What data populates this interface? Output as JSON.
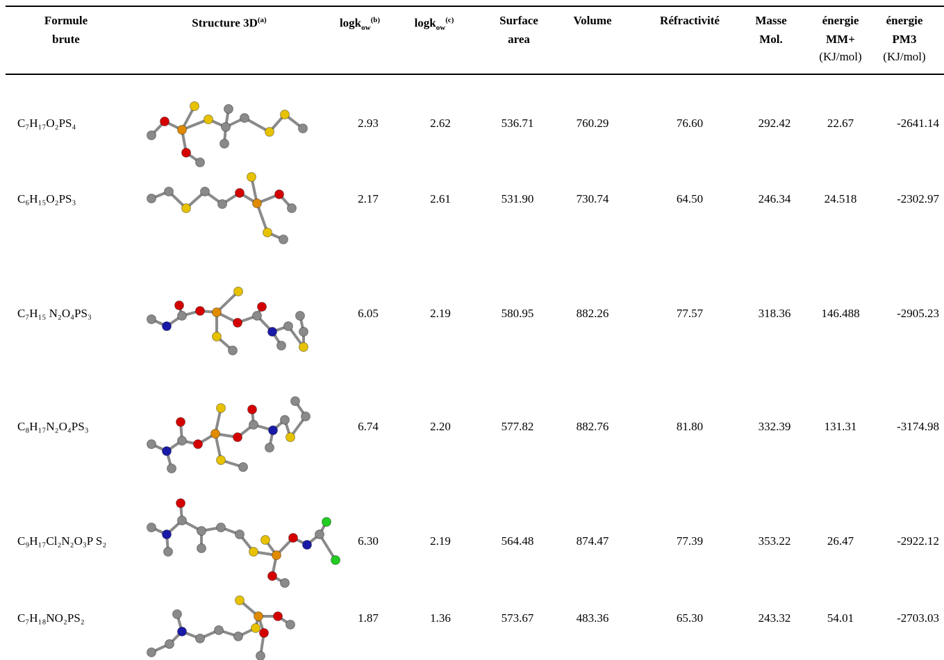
{
  "table": {
    "headers": [
      {
        "lines": [
          "Formule",
          "brute"
        ]
      },
      {
        "main": "Structure 3D",
        "sup": "(a)"
      },
      {
        "main": "logk",
        "sub": "ow",
        "sup": "(b)"
      },
      {
        "main": "logk",
        "sub": "ow",
        "sup": "(c)"
      },
      {
        "lines": [
          "Surface",
          "area"
        ]
      },
      {
        "lines": [
          "Volume"
        ]
      },
      {
        "lines": [
          "Réfractivité"
        ]
      },
      {
        "lines": [
          "Masse",
          "Mol."
        ]
      },
      {
        "lines": [
          "énergie",
          "MM+"
        ],
        "unit": "(KJ/mol)"
      },
      {
        "lines": [
          "énergie",
          "PM3"
        ],
        "unit": "(KJ/mol)"
      }
    ],
    "rows": [
      [
        "C₇H₁₇O₂PS₄",
        "2.93",
        "2.62",
        "536.71",
        "760.29",
        "76.60",
        "292.42",
        "22.67",
        "-2641.14"
      ],
      [
        "C₆H₁₅O₂PS₃",
        "2.17",
        "2.61",
        "531.90",
        "730.74",
        "64.50",
        "246.34",
        "24.518",
        "-2302.97"
      ],
      [
        "C₇H₁₅ N₂O₄PS₃",
        "6.05",
        "2.19",
        "580.95",
        "882.26",
        "77.57",
        "318.36",
        "146.488",
        "-2905.23"
      ],
      [
        "C₈H₁₇N₂O₄PS₃",
        "6.74",
        "2.20",
        "577.82",
        "882.76",
        "81.80",
        "332.39",
        "131.31",
        "-3174.98"
      ],
      [
        "C₉H₁₇Cl₂N₂O₃P S₂",
        "6.30",
        "2.19",
        "564.48",
        "874.47",
        "77.39",
        "353.22",
        "26.47",
        "-2922.12"
      ],
      [
        "C₇H₁₈NO₂PS₂",
        "1.87",
        "1.36",
        "573.67",
        "483.36",
        "65.30",
        "243.32",
        "54.01",
        "-2703.03"
      ]
    ]
  }
}
